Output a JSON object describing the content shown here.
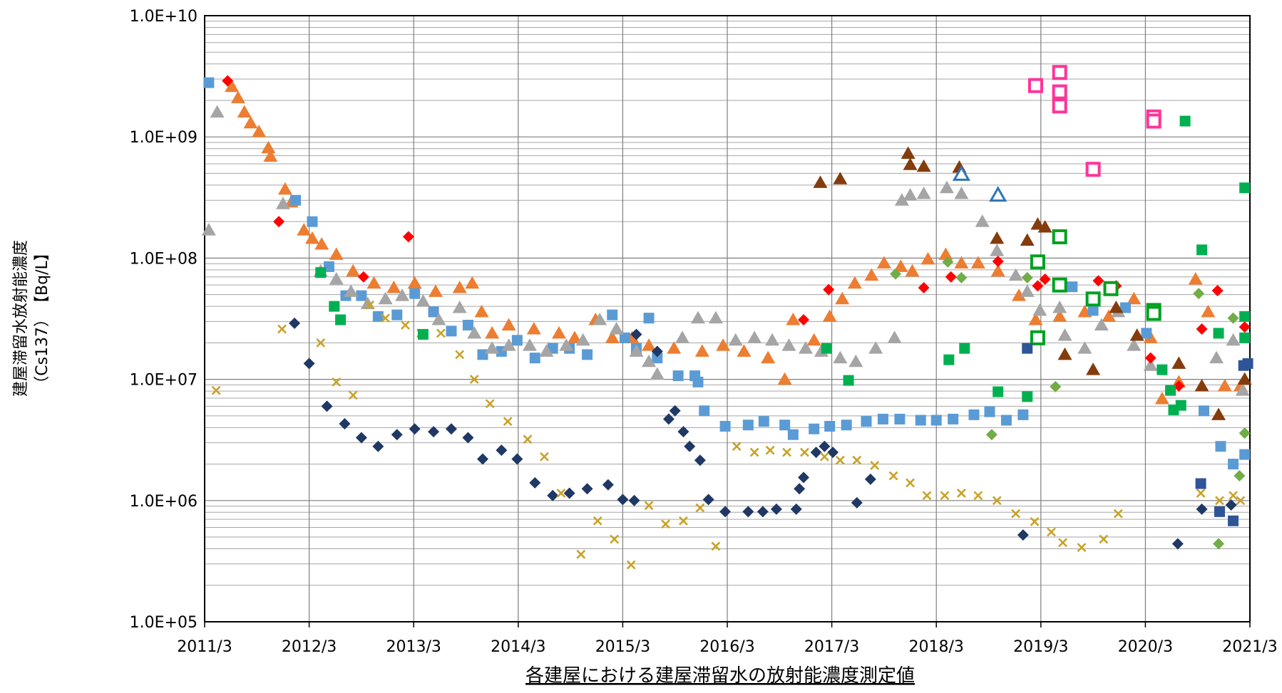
{
  "chart_data": {
    "type": "scatter",
    "title": "各建屋における建屋滞留水の放射能濃度測定値",
    "ylabel": [
      "建屋滞留水放射能濃度",
      "（Cs137）　【Bq/L】"
    ],
    "log_y": true,
    "grid": true,
    "xlim": [
      2011.17,
      2021.17
    ],
    "xticks": [
      {
        "value": 2011.17,
        "label": "2011/3"
      },
      {
        "value": 2012.17,
        "label": "2012/3"
      },
      {
        "value": 2013.17,
        "label": "2013/3"
      },
      {
        "value": 2014.17,
        "label": "2014/3"
      },
      {
        "value": 2015.17,
        "label": "2015/3"
      },
      {
        "value": 2016.17,
        "label": "2016/3"
      },
      {
        "value": 2017.17,
        "label": "2017/3"
      },
      {
        "value": 2018.17,
        "label": "2018/3"
      },
      {
        "value": 2019.17,
        "label": "2019/3"
      },
      {
        "value": 2020.17,
        "label": "2020/3"
      },
      {
        "value": 2021.17,
        "label": "2021/3"
      }
    ],
    "ylim": [
      100000,
      10000000000
    ],
    "yticks": [
      {
        "value": 100000,
        "label": "1.0E+05"
      },
      {
        "value": 1000000,
        "label": "1.0E+06"
      },
      {
        "value": 10000000,
        "label": "1.0E+07"
      },
      {
        "value": 100000000,
        "label": "1.0E+08"
      },
      {
        "value": 1000000000,
        "label": "1.0E+09"
      },
      {
        "value": 10000000000,
        "label": "1.0E+10"
      }
    ],
    "minor_yticks": [
      200000,
      300000,
      400000,
      500000,
      600000,
      700000,
      800000,
      900000,
      2000000,
      3000000,
      4000000,
      5000000,
      6000000,
      7000000,
      8000000,
      9000000,
      20000000,
      30000000,
      40000000,
      50000000,
      60000000,
      70000000,
      80000000,
      90000000,
      200000000,
      300000000,
      400000000,
      500000000,
      600000000,
      700000000,
      800000000,
      900000000,
      2000000000,
      3000000000,
      4000000000,
      5000000000,
      6000000000,
      7000000000,
      8000000000,
      9000000000
    ],
    "series": [
      {
        "color": "#ed7d31",
        "marker": "triangle",
        "x": [
          2011.43,
          2011.49,
          2011.55,
          2011.61,
          2011.69,
          2011.78,
          2011.8,
          2011.94,
          2012.0,
          2012.12,
          2012.2,
          2012.29,
          2012.43,
          2012.59,
          2012.79,
          2012.98,
          2013.18,
          2013.38,
          2013.61,
          2013.73,
          2013.82,
          2013.92,
          2014.08,
          2014.32,
          2014.56,
          2014.71,
          2014.91,
          2015.07,
          2015.26,
          2015.42,
          2015.66,
          2015.93,
          2016.13,
          2016.33,
          2016.56,
          2016.72,
          2016.8,
          2017.0,
          2017.15,
          2017.27,
          2017.39,
          2017.55,
          2017.67,
          2017.83,
          2017.94,
          2018.09,
          2018.26,
          2018.41,
          2018.57,
          2018.76,
          2018.96,
          2019.12,
          2019.35,
          2019.59,
          2019.82,
          2020.06,
          2020.22,
          2020.33,
          2020.49,
          2020.65,
          2020.77,
          2020.93,
          2021.08
        ],
        "values": [
          2600000000,
          2100000000,
          1600000000,
          1300000000,
          1100000000,
          810000000,
          690000000,
          370000000,
          290000000,
          170000000,
          145000000,
          130000000,
          107000000,
          78000000,
          62000000,
          57000000,
          62000000,
          53000000,
          57000000,
          62000000,
          36000000,
          24000000,
          28000000,
          26000000,
          24000000,
          22000000,
          31000000,
          22000000,
          22000000,
          19000000,
          18000000,
          17000000,
          19000000,
          17000000,
          15000000,
          10000000,
          31000000,
          21000000,
          33000000,
          46000000,
          62000000,
          72000000,
          91000000,
          85000000,
          78000000,
          98000000,
          107000000,
          91000000,
          91000000,
          78000000,
          49000000,
          31000000,
          33000000,
          36000000,
          33000000,
          46000000,
          22000000,
          6900000,
          9500000,
          67000000,
          36000000,
          8800000,
          8800000
        ]
      },
      {
        "color": "#5b9bd5",
        "marker": "square",
        "x": [
          2011.21,
          2012.04,
          2012.2,
          2012.36,
          2012.52,
          2012.67,
          2012.83,
          2013.01,
          2013.18,
          2013.36,
          2013.53,
          2013.69,
          2013.83,
          2014.01,
          2014.16,
          2014.33,
          2014.5,
          2014.66,
          2014.83,
          2015.07,
          2015.19,
          2015.3,
          2015.42,
          2015.5,
          2015.7,
          2015.86,
          2015.89,
          2015.95,
          2016.15,
          2016.37,
          2016.52,
          2016.72,
          2016.8,
          2017.0,
          2017.15,
          2017.31,
          2017.5,
          2017.66,
          2017.82,
          2018.02,
          2018.17,
          2018.33,
          2018.53,
          2018.68,
          2018.84,
          2019.0,
          2019.47,
          2019.67,
          2019.98,
          2020.18,
          2020.73,
          2020.89,
          2021.01,
          2021.12
        ],
        "values": [
          2800000000,
          300000000,
          200000000,
          85000000,
          49000000,
          49000000,
          33000000,
          34000000,
          51000000,
          36000000,
          25000000,
          28000000,
          16000000,
          17000000,
          21000000,
          15000000,
          18000000,
          18000000,
          16000000,
          34000000,
          22000000,
          18000000,
          32000000,
          15000000,
          10700000,
          10700000,
          9500000,
          5500000,
          4100000,
          4200000,
          4500000,
          4200000,
          3500000,
          3900000,
          4100000,
          4200000,
          4500000,
          4700000,
          4700000,
          4600000,
          4600000,
          4700000,
          5100000,
          5400000,
          4600000,
          5100000,
          58000000,
          37000000,
          39000000,
          24000000,
          5500000,
          2800000,
          2000000,
          2400000
        ]
      },
      {
        "color": "#a5a5a5",
        "marker": "triangle",
        "x": [
          2011.21,
          2011.29,
          2011.92,
          2012.28,
          2012.43,
          2012.57,
          2012.73,
          2012.9,
          2013.06,
          2013.26,
          2013.41,
          2013.61,
          2013.75,
          2013.92,
          2014.08,
          2014.28,
          2014.44,
          2014.63,
          2014.79,
          2014.95,
          2015.11,
          2015.3,
          2015.42,
          2015.5,
          2015.74,
          2015.89,
          2016.06,
          2016.25,
          2016.43,
          2016.6,
          2016.76,
          2016.92,
          2017.07,
          2017.25,
          2017.4,
          2017.59,
          2017.77,
          2017.84,
          2017.92,
          2018.05,
          2018.27,
          2018.41,
          2018.61,
          2018.75,
          2018.93,
          2019.04,
          2019.16,
          2019.35,
          2019.4,
          2019.59,
          2019.75,
          2019.91,
          2020.06,
          2020.22,
          2020.85,
          2021.01,
          2021.1
        ],
        "values": [
          170000000,
          1600000000,
          280000000,
          78000000,
          67000000,
          53000000,
          42000000,
          46000000,
          49000000,
          44000000,
          31000000,
          39000000,
          24000000,
          18000000,
          19000000,
          19000000,
          17000000,
          19000000,
          21000000,
          31000000,
          26000000,
          17000000,
          14000000,
          11000000,
          22000000,
          32000000,
          32000000,
          21000000,
          22000000,
          21000000,
          19000000,
          18000000,
          17000000,
          15000000,
          14000000,
          18000000,
          22000000,
          300000000,
          330000000,
          340000000,
          380000000,
          340000000,
          200000000,
          115000000,
          72000000,
          53000000,
          37000000,
          39000000,
          23000000,
          18000000,
          28000000,
          36000000,
          19000000,
          13000000,
          15000000,
          21000000,
          8100000
        ]
      },
      {
        "color": "#1f3864",
        "marker": "diamond",
        "x": [
          2012.03,
          2012.17,
          2012.34,
          2012.51,
          2012.67,
          2012.83,
          2013.01,
          2013.18,
          2013.36,
          2013.53,
          2013.69,
          2013.83,
          2014.01,
          2014.16,
          2014.33,
          2014.5,
          2014.66,
          2014.83,
          2015.03,
          2015.17,
          2015.28,
          2015.3,
          2015.5,
          2015.61,
          2015.67,
          2015.75,
          2015.81,
          2015.91,
          2015.99,
          2016.15,
          2016.37,
          2016.51,
          2016.64,
          2016.83,
          2016.86,
          2016.9,
          2017.02,
          2017.1,
          2017.18,
          2017.41,
          2017.54,
          2019.0,
          2020.48,
          2020.71,
          2020.99
        ],
        "values": [
          29000000,
          13500000,
          6000000,
          4300000,
          3300000,
          2800000,
          3500000,
          3900000,
          3700000,
          3900000,
          3300000,
          2200000,
          2600000,
          2200000,
          1400000,
          1100000,
          1150000,
          1250000,
          1350000,
          1020000,
          1000000,
          23500000,
          17000000,
          4700000,
          5500000,
          3700000,
          2800000,
          2150000,
          1020000,
          810000,
          810000,
          810000,
          850000,
          850000,
          1250000,
          1550000,
          2500000,
          2800000,
          2500000,
          960000,
          1500000,
          520000,
          440000,
          850000,
          920000
        ]
      },
      {
        "color": "#c9a227",
        "marker": "x",
        "x": [
          2011.28,
          2011.91,
          2012.28,
          2012.43,
          2012.59,
          2012.75,
          2012.9,
          2013.09,
          2013.24,
          2013.43,
          2013.61,
          2013.75,
          2013.9,
          2014.07,
          2014.26,
          2014.42,
          2014.58,
          2014.77,
          2014.93,
          2015.09,
          2015.25,
          2015.42,
          2015.58,
          2015.75,
          2015.91,
          2016.06,
          2016.26,
          2016.43,
          2016.58,
          2016.74,
          2016.91,
          2017.1,
          2017.25,
          2017.41,
          2017.58,
          2017.76,
          2017.92,
          2018.08,
          2018.25,
          2018.41,
          2018.57,
          2018.75,
          2018.93,
          2019.11,
          2019.27,
          2019.38,
          2019.56,
          2019.77,
          2019.91,
          2020.7,
          2020.88,
          2021.01,
          2021.08
        ],
        "values": [
          8100000,
          26000000,
          20000000,
          9500000,
          7400000,
          41000000,
          32000000,
          28000000,
          24000000,
          24000000,
          16000000,
          10000000,
          6300000,
          4500000,
          3200000,
          2300000,
          1150000,
          360000,
          680000,
          480000,
          295000,
          910000,
          640000,
          680000,
          870000,
          420000,
          2800000,
          2500000,
          2600000,
          2500000,
          2500000,
          2300000,
          2150000,
          2150000,
          1950000,
          1600000,
          1400000,
          1100000,
          1100000,
          1150000,
          1100000,
          1000000,
          780000,
          670000,
          550000,
          450000,
          410000,
          480000,
          780000,
          1150000,
          1000000,
          1100000,
          1000000
        ]
      },
      {
        "color": "#ff0000",
        "marker": "diamond",
        "x": [
          2011.39,
          2011.88,
          2012.69,
          2013.12,
          2016.9,
          2017.14,
          2018.05,
          2018.31,
          2018.76,
          2019.14,
          2019.21,
          2019.72,
          2019.89,
          2020.22,
          2020.49,
          2020.71,
          2020.86,
          2021.12
        ],
        "values": [
          2900000000,
          200000000,
          70000000,
          150000000,
          31000000,
          55000000,
          57000000,
          70000000,
          94000000,
          59000000,
          67000000,
          65000000,
          59000000,
          15000000,
          8800000,
          26000000,
          54000000,
          27000000
        ]
      },
      {
        "color": "#843c0c",
        "marker": "triangle",
        "x": [
          2017.06,
          2017.25,
          2017.9,
          2017.92,
          2018.05,
          2018.39,
          2018.75,
          2019.04,
          2019.14,
          2019.21,
          2019.4,
          2019.67,
          2019.89,
          2020.09,
          2020.49,
          2020.71,
          2020.87,
          2021.12
        ],
        "values": [
          420000000,
          450000000,
          730000000,
          590000000,
          570000000,
          560000000,
          145000000,
          140000000,
          190000000,
          180000000,
          16000000,
          12000000,
          39000000,
          23000000,
          13500000,
          8800000,
          5100000,
          10000000
        ]
      },
      {
        "color": "#00b050",
        "marker": "square",
        "x": [
          2012.28,
          2012.41,
          2012.47,
          2013.26,
          2017.12,
          2017.33,
          2018.29,
          2018.44,
          2018.76,
          2019.04,
          2020.33,
          2020.41,
          2020.44,
          2020.51,
          2020.55,
          2020.71,
          2020.87,
          2021.12,
          2021.12,
          2021.12
        ],
        "values": [
          76000000,
          40000000,
          31000000,
          23500000,
          18000000,
          9800000,
          14500000,
          18000000,
          7900000,
          7200000,
          12000000,
          8100000,
          5600000,
          6100000,
          1350000000,
          117000000,
          24000000,
          33000000,
          22000000,
          380000000
        ]
      },
      {
        "color": "#70ad47",
        "marker": "diamond",
        "x": [
          2017.78,
          2018.28,
          2018.41,
          2018.7,
          2019.04,
          2019.31,
          2020.68,
          2020.87,
          2021.01,
          2021.07,
          2021.12
        ],
        "values": [
          74000000,
          93000000,
          69000000,
          3500000,
          69000000,
          8700000,
          51000000,
          440000,
          32000000,
          1600000,
          3600000
        ]
      },
      {
        "color": "#ff3399",
        "marker": "square-open",
        "x": [
          2019.12,
          2019.35,
          2019.35,
          2019.35,
          2019.67,
          2020.25,
          2020.25
        ],
        "values": [
          2650000000,
          3400000000,
          2350000000,
          1800000000,
          540000000,
          1460000000,
          1350000000
        ]
      },
      {
        "color": "#00a020",
        "marker": "square-open",
        "x": [
          2019.14,
          2019.14,
          2019.35,
          2019.35,
          2019.67,
          2019.84,
          2020.25,
          2020.25
        ],
        "values": [
          93000000,
          22000000,
          150000000,
          60000000,
          46000000,
          56000000,
          37000000,
          35000000
        ]
      },
      {
        "color": "#2e75b6",
        "marker": "triangle-open",
        "x": [
          2018.41,
          2018.76
        ],
        "values": [
          490000000,
          330000000
        ]
      },
      {
        "color": "#2f5597",
        "marker": "square",
        "x": [
          2019.04,
          2020.7,
          2020.88,
          2021.01,
          2021.11,
          2021.15
        ],
        "values": [
          18000000,
          1380000,
          810000,
          680000,
          13000000,
          13500000
        ]
      }
    ]
  }
}
